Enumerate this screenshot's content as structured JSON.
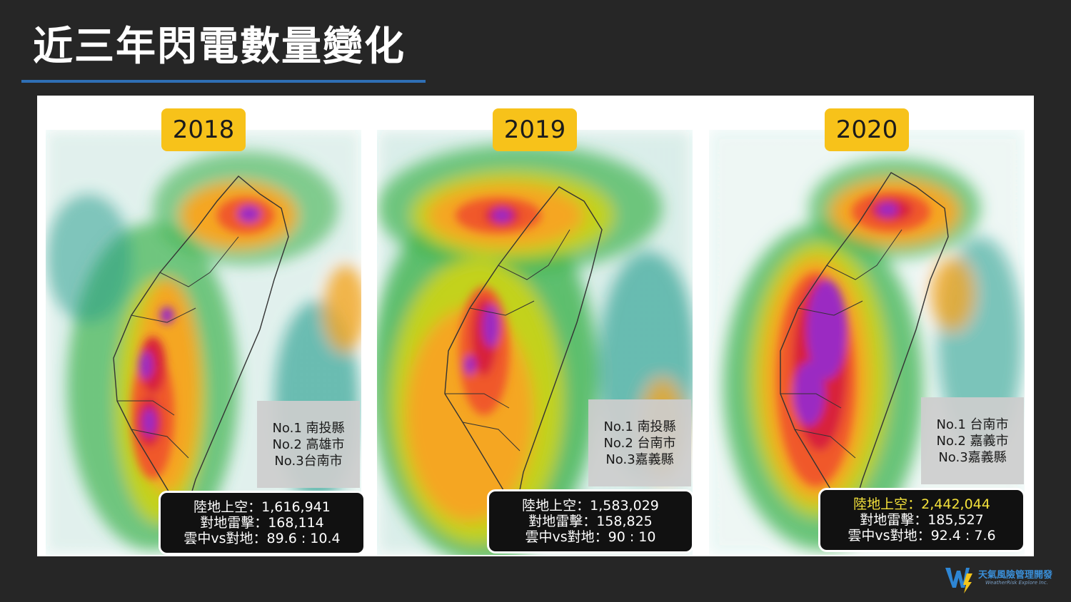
{
  "slide": {
    "title": "近三年閃電數量變化"
  },
  "panels": [
    {
      "year": "2018",
      "ranks": [
        "No.1 南投縣",
        "No.2 高雄市",
        "No.3台南市"
      ],
      "stats": {
        "land": "陸地上空：1,616,941",
        "ground": "對地雷擊：168,114",
        "ratio": "雲中vs對地：89.6 : 10.4"
      }
    },
    {
      "year": "2019",
      "ranks": [
        "No.1 南投縣",
        "No.2 台南市",
        "No.3嘉義縣"
      ],
      "stats": {
        "land": "陸地上空：1,583,029",
        "ground": "對地雷擊：158,825",
        "ratio": "雲中vs對地：90 : 10"
      }
    },
    {
      "year": "2020",
      "ranks": [
        "No.1 台南市",
        "No.2 嘉義市",
        "No.3嘉義縣"
      ],
      "stats": {
        "land": "陸地上空：2,442,044",
        "ground": "對地雷擊：185,527",
        "ratio": "雲中vs對地：92.4 : 7.6"
      }
    }
  ],
  "logo": {
    "name_cn": "天氣風險管理開發",
    "name_en": "WeatherRisk Explore Inc."
  },
  "colors": {
    "background": "#262626",
    "title_underline": "#2f6fb5",
    "badge": "#f7c21a",
    "highlight": "#f5e23b",
    "density_scale": [
      "#1f9a8a",
      "#3fb34f",
      "#c3d21f",
      "#f5a623",
      "#f0582a",
      "#d8203a",
      "#9b2bc2"
    ]
  }
}
